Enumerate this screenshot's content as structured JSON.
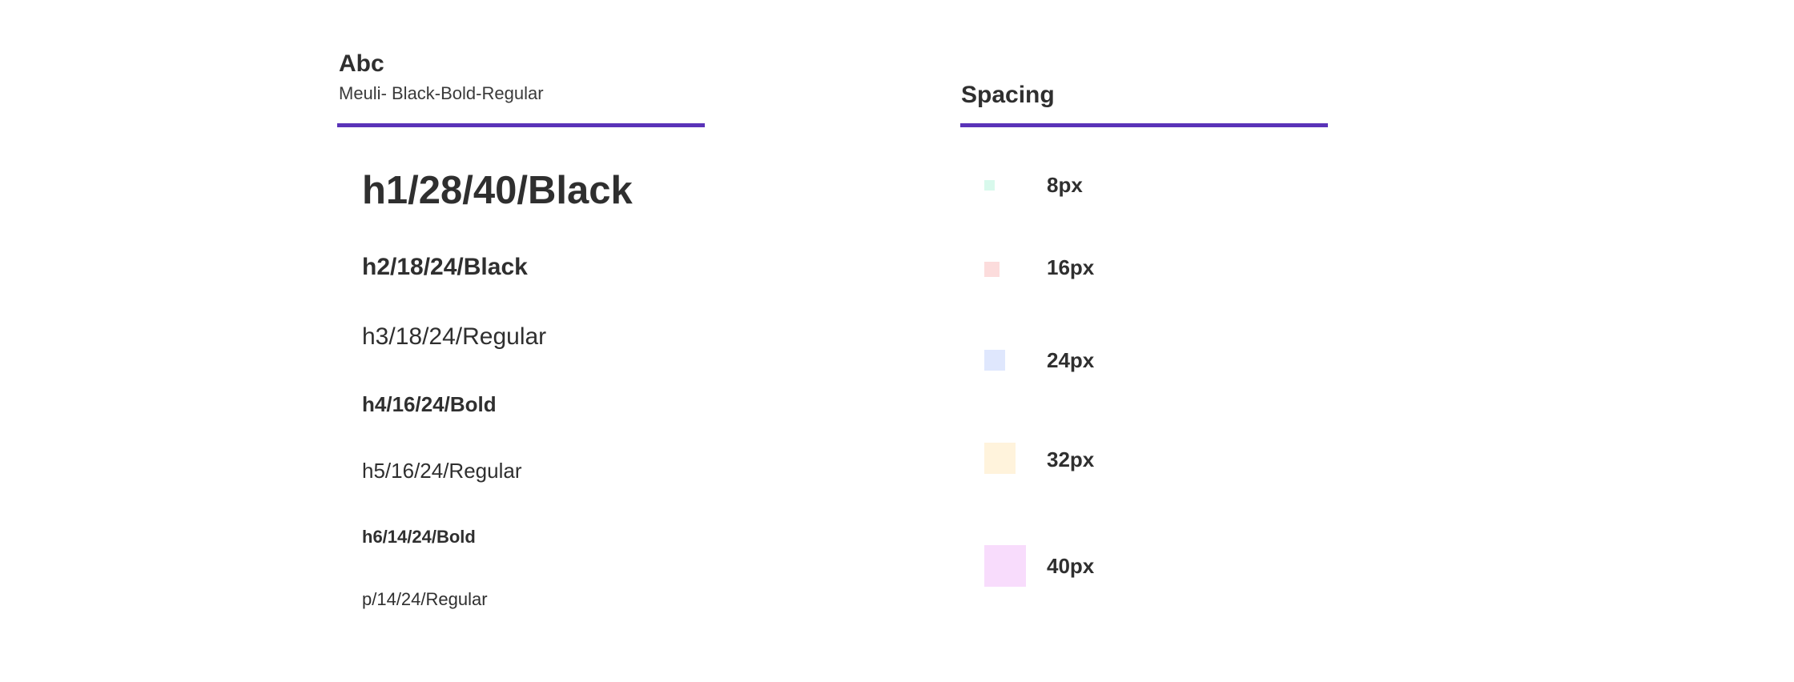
{
  "typography": {
    "title": "Abc",
    "subtitle": "Meuli- Black-Bold-Regular",
    "accent_color": "#5a33b8",
    "styles": [
      {
        "label": "h1/28/40/Black"
      },
      {
        "label": "h2/18/24/Black"
      },
      {
        "label": "h3/18/24/Regular"
      },
      {
        "label": "h4/16/24/Bold"
      },
      {
        "label": "h5/16/24/Regular"
      },
      {
        "label": "h6/14/24/Bold"
      },
      {
        "label": "p/14/24/Regular"
      }
    ]
  },
  "spacing": {
    "title": "Spacing",
    "items": [
      {
        "label": "8px",
        "color": "#d8f9ec"
      },
      {
        "label": "16px",
        "color": "#fcdcdc"
      },
      {
        "label": "24px",
        "color": "#dfe7fd"
      },
      {
        "label": "32px",
        "color": "#fff3dc"
      },
      {
        "label": "40px",
        "color": "#f8dcfc"
      }
    ]
  }
}
